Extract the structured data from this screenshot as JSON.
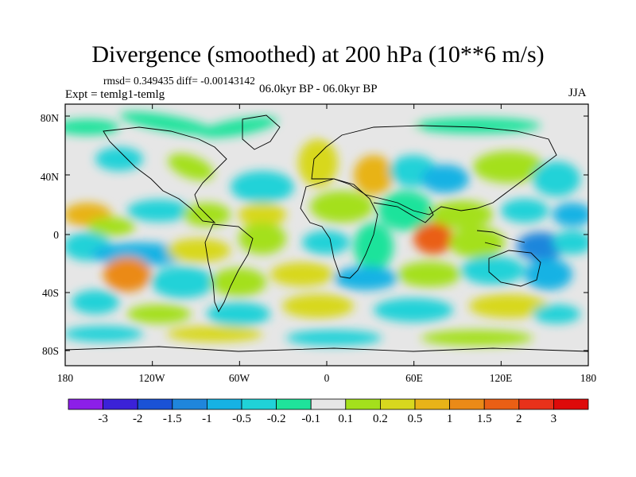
{
  "title": "Divergence (smoothed) at 200 hPa (10**6 m/s)",
  "stats": "rmsd= 0.349435 diff= -0.00143142",
  "expt": "Expt = temlg1-temlg",
  "period": "06.0kyr BP - 06.0kyr BP",
  "season": "JJA",
  "axes": {
    "lat_labels": [
      "80N",
      "40N",
      "0",
      "40S",
      "80S"
    ],
    "lon_labels": [
      "180",
      "120W",
      "60W",
      "0",
      "60E",
      "120E",
      "180"
    ]
  },
  "colorbar": {
    "labels": [
      "-3",
      "-2",
      "-1.5",
      "-1",
      "-0.5",
      "-0.2",
      "-0.1",
      "0.1",
      "0.2",
      "0.5",
      "1",
      "1.5",
      "2",
      "3"
    ],
    "colors": [
      "#8c1fe8",
      "#3b22d8",
      "#1a52d6",
      "#1f86dc",
      "#16b2e4",
      "#20d2d8",
      "#1fe39b",
      "#e6e6e6",
      "#a4e01c",
      "#d8d81e",
      "#e8b318",
      "#eb8a17",
      "#ea5f15",
      "#e8311a",
      "#de0a0a"
    ]
  },
  "colors": {
    "land_bg": "#e6e6e6",
    "coast": "#000000"
  }
}
